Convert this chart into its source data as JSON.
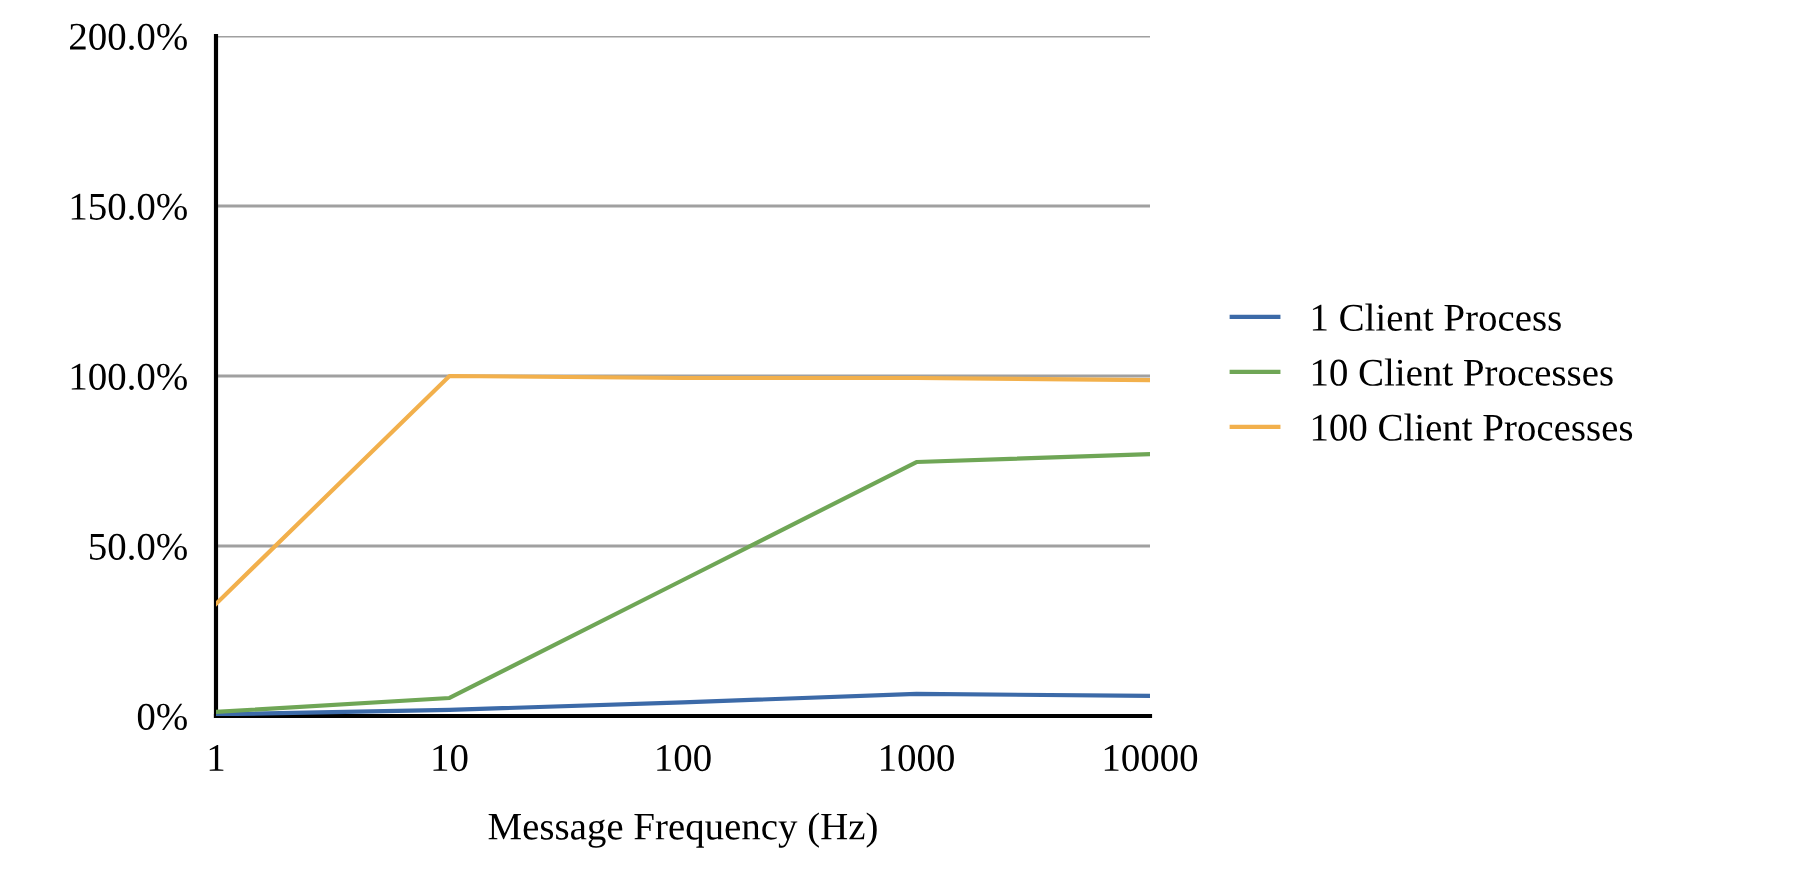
{
  "chart_data": {
    "type": "line",
    "xlabel": "Message Frequency (Hz)",
    "categories": [
      "1",
      "10",
      "100",
      "1000",
      "10000"
    ],
    "series": [
      {
        "name": "1 Client Process",
        "color": "#3c6aa8",
        "values": [
          0.5,
          1.8,
          4,
          6.5,
          5.9
        ]
      },
      {
        "name": "10 Client Processes",
        "color": "#6fa656",
        "values": [
          1.2,
          5.3,
          40,
          74.7,
          77
        ]
      },
      {
        "name": "100 Client Processes",
        "color": "#f2b04c",
        "values": [
          33,
          100,
          99.4,
          99.4,
          98.8
        ]
      }
    ],
    "ylim": [
      0,
      200
    ],
    "yticks": [
      {
        "value": 0,
        "label": "0%"
      },
      {
        "value": 50,
        "label": "50.0%"
      },
      {
        "value": 100,
        "label": "100.0%"
      },
      {
        "value": 150,
        "label": "150.0%"
      },
      {
        "value": 200,
        "label": "200.0%"
      }
    ],
    "grid": "y",
    "legend": "right",
    "marker": "none",
    "line_style": "solid"
  }
}
